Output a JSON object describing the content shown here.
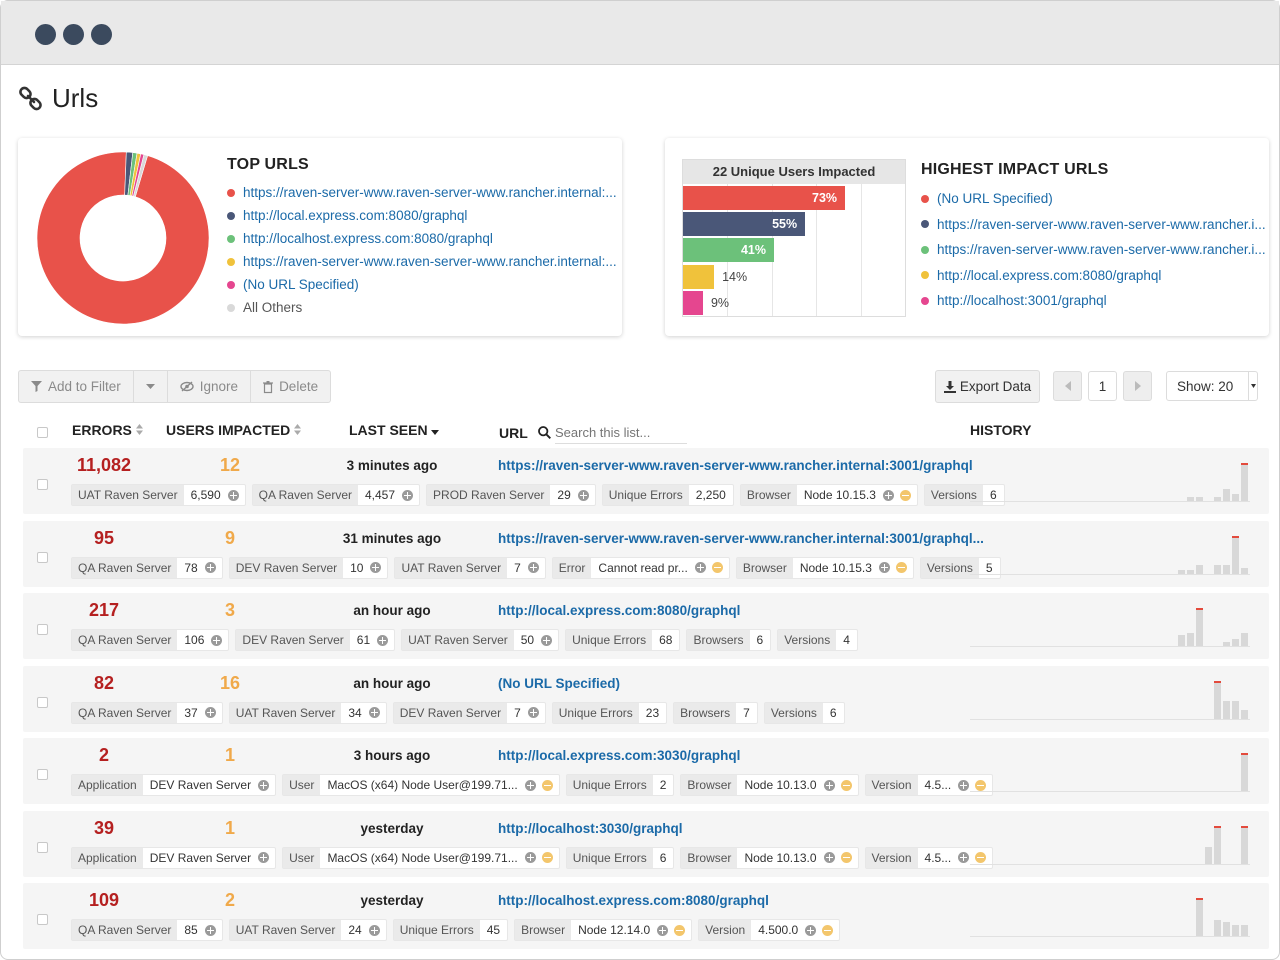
{
  "page": {
    "title": "Urls",
    "icon": "link-icon"
  },
  "top_urls": {
    "title": "TOP URLS",
    "items": [
      {
        "label": "https://raven-server-www.raven-server-www.rancher.internal:...",
        "color": "#e8524a"
      },
      {
        "label": "http://local.express.com:8080/graphql",
        "color": "#4a5778"
      },
      {
        "label": "http://localhost.express.com:8080/graphql",
        "color": "#6cc17a"
      },
      {
        "label": "https://raven-server-www.raven-server-www.rancher.internal:...",
        "color": "#f0c23b"
      },
      {
        "label": "(No URL Specified)",
        "color": "#e5468f"
      },
      {
        "label": "All Others",
        "color": "#d9d9d9"
      }
    ]
  },
  "chart_data": [
    {
      "type": "pie",
      "categories": [
        "https://raven-server-www.raven-server-www.rancher.internal:...",
        "http://local.express.com:8080/graphql",
        "http://localhost.express.com:8080/graphql",
        "https://raven-server-www.raven-server-www.rancher.internal:...",
        "(No URL Specified)",
        "All Others"
      ],
      "values": [
        96.0,
        1.2,
        0.8,
        0.7,
        0.6,
        0.7
      ],
      "colors": [
        "#e8524a",
        "#4a5778",
        "#6cc17a",
        "#f0c23b",
        "#e5468f",
        "#d9d9d9"
      ],
      "title": "TOP URLS"
    },
    {
      "type": "bar",
      "title": "22 Unique Users Impacted",
      "categories": [
        "(No URL Specified)",
        "https://raven-server-www.raven-server-www.rancher.i...",
        "https://raven-server-www.raven-server-www.rancher.i...",
        "http://local.express.com:8080/graphql",
        "http://localhost:3001/graphql"
      ],
      "values": [
        73,
        55,
        41,
        14,
        9
      ],
      "labels": [
        "73%",
        "55%",
        "41%",
        "14%",
        "9%"
      ],
      "colors": [
        "#e8524a",
        "#4a5778",
        "#6cc17a",
        "#f0c23b",
        "#e5468f"
      ],
      "xlim": [
        0,
        100
      ]
    }
  ],
  "highest_impact": {
    "title": "HIGHEST IMPACT URLS",
    "items": [
      {
        "label": "(No URL Specified)",
        "color": "#e8524a"
      },
      {
        "label": "https://raven-server-www.raven-server-www.rancher.i...",
        "color": "#4a5778"
      },
      {
        "label": "https://raven-server-www.raven-server-www.rancher.i...",
        "color": "#6cc17a"
      },
      {
        "label": "http://local.express.com:8080/graphql",
        "color": "#f0c23b"
      },
      {
        "label": "http://localhost:3001/graphql",
        "color": "#e5468f"
      }
    ]
  },
  "toolbar": {
    "add_filter": "Add to Filter",
    "ignore": "Ignore",
    "delete": "Delete",
    "export": "Export Data",
    "page": "1",
    "show": "Show: 20"
  },
  "table": {
    "headers": {
      "errors": "ERRORS",
      "users": "USERS IMPACTED",
      "last_seen": "LAST SEEN",
      "url": "URL",
      "history": "HISTORY"
    },
    "search_placeholder": "Search this list...",
    "rows": [
      {
        "errors": "11,082",
        "users": "12",
        "last_seen": "3 minutes ago",
        "url": "https://raven-server-www.raven-server-www.rancher.internal:3001/graphql",
        "tags": [
          {
            "k": "UAT Raven Server",
            "v": "6,590",
            "i": [
              "plus"
            ]
          },
          {
            "k": "QA Raven Server",
            "v": "4,457",
            "i": [
              "plus"
            ]
          },
          {
            "k": "PROD Raven Server",
            "v": "29",
            "i": [
              "plus"
            ]
          },
          {
            "k": "Unique Errors",
            "v": "2,250",
            "i": []
          },
          {
            "k": "Browser",
            "v": "Node 10.15.3",
            "i": [
              "plus",
              "minus"
            ]
          },
          {
            "k": "Versions",
            "v": "6",
            "i": []
          }
        ],
        "history": [
          0,
          0,
          0,
          0,
          0,
          0,
          0,
          0,
          0,
          0,
          0,
          0,
          0,
          0,
          0,
          0,
          0,
          0,
          0,
          0,
          0,
          0,
          0,
          0,
          0,
          10,
          10,
          0,
          10,
          33,
          20,
          100
        ]
      },
      {
        "errors": "95",
        "users": "9",
        "last_seen": "31 minutes ago",
        "url": "https://raven-server-www.raven-server-www.rancher.internal:3001/graphql...",
        "tags": [
          {
            "k": "QA Raven Server",
            "v": "78",
            "i": [
              "plus"
            ]
          },
          {
            "k": "DEV Raven Server",
            "v": "10",
            "i": [
              "plus"
            ]
          },
          {
            "k": "UAT Raven Server",
            "v": "7",
            "i": [
              "plus"
            ]
          },
          {
            "k": "Error",
            "v": "Cannot read pr...",
            "i": [
              "plus",
              "minus"
            ]
          },
          {
            "k": "Browser",
            "v": "Node 10.15.3",
            "i": [
              "plus",
              "minus"
            ]
          },
          {
            "k": "Versions",
            "v": "5",
            "i": []
          }
        ],
        "history": [
          0,
          0,
          0,
          0,
          0,
          0,
          0,
          0,
          0,
          0,
          0,
          0,
          0,
          0,
          0,
          0,
          0,
          0,
          0,
          0,
          0,
          0,
          0,
          0,
          10,
          10,
          25,
          0,
          25,
          25,
          100,
          15
        ]
      },
      {
        "errors": "217",
        "users": "3",
        "last_seen": "an hour ago",
        "url": "http://local.express.com:8080/graphql",
        "tags": [
          {
            "k": "QA Raven Server",
            "v": "106",
            "i": [
              "plus"
            ]
          },
          {
            "k": "DEV Raven Server",
            "v": "61",
            "i": [
              "plus"
            ]
          },
          {
            "k": "UAT Raven Server",
            "v": "50",
            "i": [
              "plus"
            ]
          },
          {
            "k": "Unique Errors",
            "v": "68",
            "i": []
          },
          {
            "k": "Browsers",
            "v": "6",
            "i": []
          },
          {
            "k": "Versions",
            "v": "4",
            "i": []
          }
        ],
        "history": [
          0,
          0,
          0,
          0,
          0,
          0,
          0,
          0,
          0,
          0,
          0,
          0,
          0,
          0,
          0,
          0,
          0,
          0,
          0,
          0,
          0,
          0,
          0,
          0,
          30,
          35,
          100,
          0,
          0,
          12,
          20,
          35
        ]
      },
      {
        "errors": "82",
        "users": "16",
        "last_seen": "an hour ago",
        "url": "(No URL Specified)",
        "tags": [
          {
            "k": "QA Raven Server",
            "v": "37",
            "i": [
              "plus"
            ]
          },
          {
            "k": "UAT Raven Server",
            "v": "34",
            "i": [
              "plus"
            ]
          },
          {
            "k": "DEV Raven Server",
            "v": "7",
            "i": [
              "plus"
            ]
          },
          {
            "k": "Unique Errors",
            "v": "23",
            "i": []
          },
          {
            "k": "Browsers",
            "v": "7",
            "i": []
          },
          {
            "k": "Versions",
            "v": "6",
            "i": []
          }
        ],
        "history": [
          0,
          0,
          0,
          0,
          0,
          0,
          0,
          0,
          0,
          0,
          0,
          0,
          0,
          0,
          0,
          0,
          0,
          0,
          0,
          0,
          0,
          0,
          0,
          0,
          0,
          0,
          0,
          0,
          100,
          50,
          50,
          25
        ]
      },
      {
        "errors": "2",
        "users": "1",
        "last_seen": "3 hours ago",
        "url": "http://local.express.com:3030/graphql",
        "tags": [
          {
            "k": "Application",
            "v": "DEV Raven Server",
            "i": [
              "plus"
            ]
          },
          {
            "k": "User",
            "v": "MacOS (x64) Node User@199.71...",
            "i": [
              "plus",
              "minus"
            ]
          },
          {
            "k": "Unique Errors",
            "v": "2",
            "i": []
          },
          {
            "k": "Browser",
            "v": "Node 10.13.0",
            "i": [
              "plus",
              "minus"
            ]
          },
          {
            "k": "Version",
            "v": "4.5...",
            "i": [
              "plus",
              "minus"
            ]
          }
        ],
        "history": [
          0,
          0,
          0,
          0,
          0,
          0,
          0,
          0,
          0,
          0,
          0,
          0,
          0,
          0,
          0,
          0,
          0,
          0,
          0,
          0,
          0,
          0,
          0,
          0,
          0,
          0,
          0,
          0,
          0,
          0,
          0,
          100
        ]
      },
      {
        "errors": "39",
        "users": "1",
        "last_seen": "yesterday",
        "url": "http://localhost:3030/graphql",
        "tags": [
          {
            "k": "Application",
            "v": "DEV Raven Server",
            "i": [
              "plus"
            ]
          },
          {
            "k": "User",
            "v": "MacOS (x64) Node User@199.71...",
            "i": [
              "plus",
              "minus"
            ]
          },
          {
            "k": "Unique Errors",
            "v": "6",
            "i": []
          },
          {
            "k": "Browser",
            "v": "Node 10.13.0",
            "i": [
              "plus",
              "minus"
            ]
          },
          {
            "k": "Version",
            "v": "4.5...",
            "i": [
              "plus",
              "minus"
            ]
          }
        ],
        "history": [
          0,
          0,
          0,
          0,
          0,
          0,
          0,
          0,
          0,
          0,
          0,
          0,
          0,
          0,
          0,
          0,
          0,
          0,
          0,
          0,
          0,
          0,
          0,
          0,
          0,
          0,
          0,
          45,
          100,
          0,
          0,
          100
        ]
      },
      {
        "errors": "109",
        "users": "2",
        "last_seen": "yesterday",
        "url": "http://localhost.express.com:8080/graphql",
        "tags": [
          {
            "k": "QA Raven Server",
            "v": "85",
            "i": [
              "plus"
            ]
          },
          {
            "k": "UAT Raven Server",
            "v": "24",
            "i": [
              "plus"
            ]
          },
          {
            "k": "Unique Errors",
            "v": "45",
            "i": []
          },
          {
            "k": "Browser",
            "v": "Node 12.14.0",
            "i": [
              "plus",
              "minus"
            ]
          },
          {
            "k": "Version",
            "v": "4.500.0",
            "i": [
              "plus",
              "minus"
            ]
          }
        ],
        "history": [
          0,
          0,
          0,
          0,
          0,
          0,
          0,
          0,
          0,
          0,
          0,
          0,
          0,
          0,
          0,
          0,
          0,
          0,
          0,
          0,
          0,
          0,
          0,
          0,
          0,
          0,
          100,
          0,
          45,
          40,
          30,
          30
        ]
      }
    ]
  }
}
